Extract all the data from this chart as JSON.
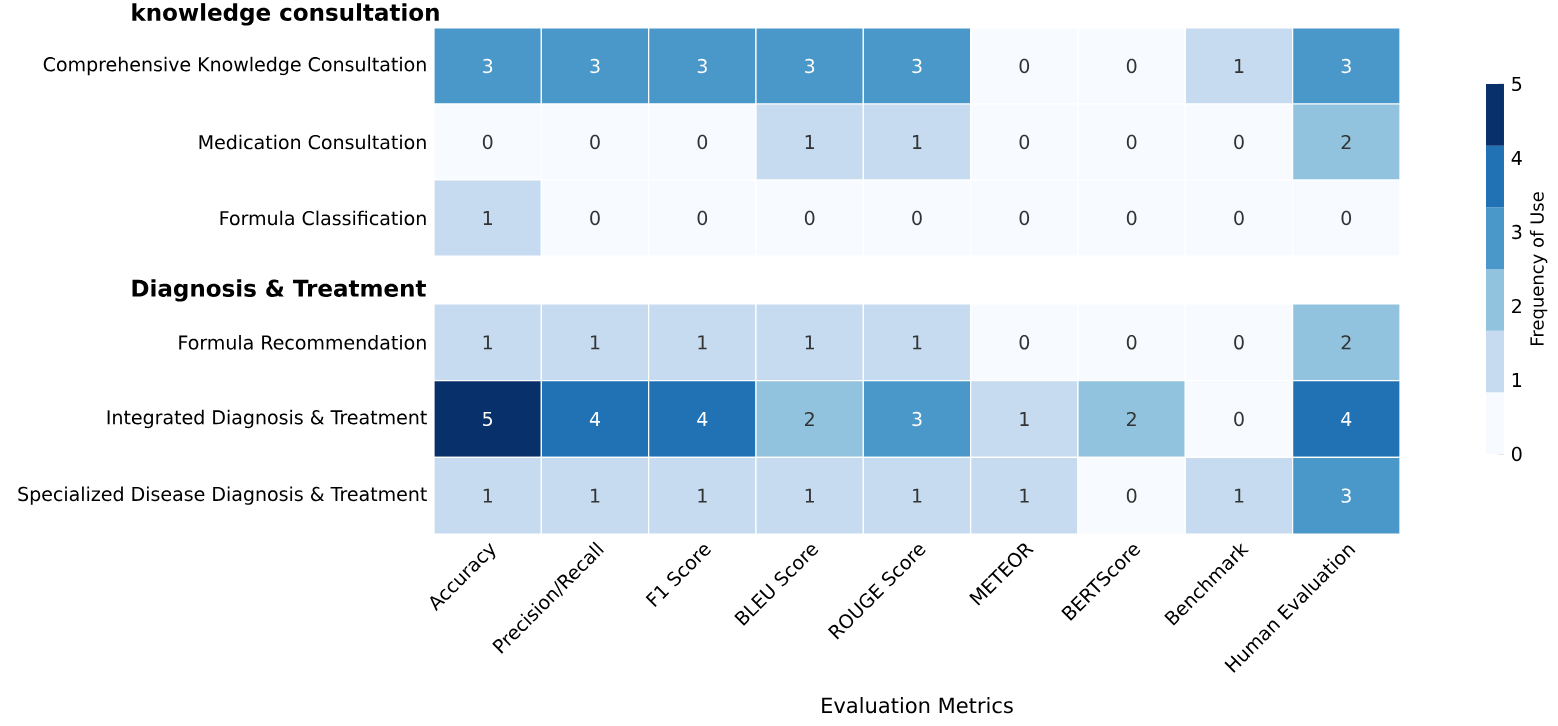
{
  "chart_data": [
    {
      "type": "heatmap",
      "title": "knowledge consultation",
      "categories": [
        null,
        null,
        null,
        null,
        null,
        null,
        null,
        null,
        null
      ],
      "y_categories": [
        "Comprehensive Knowledge Consultation",
        "Medication Consultation",
        "Formula Classification"
      ],
      "cells": [
        [
          3,
          3,
          3,
          3,
          3,
          0,
          0,
          1,
          3
        ],
        [
          0,
          0,
          0,
          1,
          1,
          0,
          0,
          0,
          2
        ],
        [
          1,
          0,
          0,
          0,
          0,
          0,
          0,
          0,
          0
        ]
      ],
      "data_labels": true,
      "tick_labels": "y"
    },
    {
      "type": "heatmap",
      "title": "Diagnosis & Treatment",
      "xlabel": "Evaluation Metrics",
      "clabel": "Frequency of Use",
      "categories": [
        "Accuracy",
        "Precision/Recall",
        "F1 Score",
        "BLEU Score",
        "ROUGE Score",
        "METEOR",
        "BERTScore",
        "Benchmark",
        "Human Evaluation"
      ],
      "y_categories": [
        "Formula Recommendation",
        "Integrated Diagnosis & Treatment",
        "Specialized Disease Diagnosis & Treatment"
      ],
      "cells": [
        [
          1,
          1,
          1,
          1,
          1,
          0,
          0,
          0,
          2
        ],
        [
          5,
          4,
          4,
          2,
          3,
          1,
          2,
          0,
          4
        ],
        [
          1,
          1,
          1,
          1,
          1,
          1,
          0,
          1,
          3
        ]
      ],
      "clim": [
        0,
        5
      ],
      "cticks": [
        0,
        1,
        2,
        3,
        4,
        5
      ],
      "data_labels": true
    }
  ]
}
